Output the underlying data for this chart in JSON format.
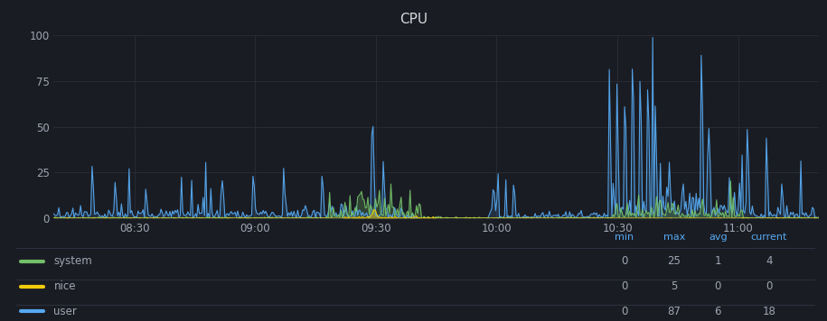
{
  "title": "CPU",
  "bg_color": "#1a1c23",
  "plot_bg_color": "#1a1c23",
  "grid_color": "#2c2f3a",
  "text_color": "#9fa7b3",
  "title_color": "#d8d9da",
  "ylim": [
    0,
    100
  ],
  "yticks": [
    0,
    25,
    50,
    75,
    100
  ],
  "xtick_labels": [
    "08:30",
    "09:00",
    "09:30",
    "10:00",
    "10:30",
    "11:00"
  ],
  "series_colors": {
    "system": "#73bf69",
    "nice": "#f2cc0c",
    "user": "#56a9f1"
  },
  "legend_header_color": "#56a9f1",
  "legend": [
    {
      "label": "system",
      "color": "#73bf69",
      "min": "0",
      "max": "25",
      "avg": "1",
      "current": "4"
    },
    {
      "label": "nice",
      "color": "#f2cc0c",
      "min": "0",
      "max": "5",
      "avg": "0",
      "current": "0"
    },
    {
      "label": "user",
      "color": "#56a9f1",
      "min": "0",
      "max": "87",
      "avg": "6",
      "current": "18"
    }
  ],
  "n_points": 600
}
